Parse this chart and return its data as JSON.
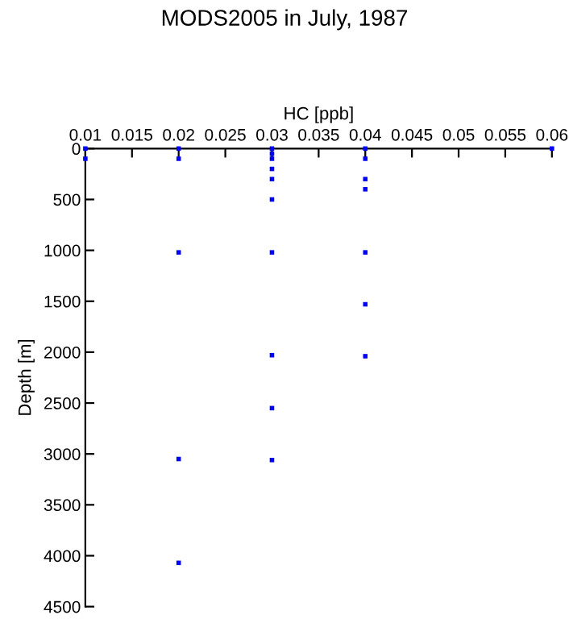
{
  "chart_data": {
    "type": "scatter",
    "title": "MODS2005 in July, 1987",
    "xlabel": "HC [ppb]",
    "ylabel": "Depth [m]",
    "x": [
      0.01,
      0.01,
      0.02,
      0.02,
      0.02,
      0.02,
      0.02,
      0.03,
      0.03,
      0.03,
      0.03,
      0.03,
      0.03,
      0.03,
      0.03,
      0.03,
      0.03,
      0.04,
      0.04,
      0.04,
      0.04,
      0.04,
      0.04,
      0.04,
      0.06
    ],
    "values": [
      0,
      100,
      0,
      100,
      1020,
      3050,
      4070,
      0,
      50,
      100,
      200,
      300,
      500,
      1020,
      2030,
      2550,
      3060,
      0,
      100,
      300,
      400,
      1020,
      1530,
      2040,
      0
    ],
    "color": "#0000ff",
    "marker": "square",
    "grid": false,
    "xlim": [
      0.01,
      0.06
    ],
    "xticks": [
      0.01,
      0.015,
      0.02,
      0.025,
      0.03,
      0.035,
      0.04,
      0.045,
      0.05,
      0.055,
      0.06
    ],
    "ylim": [
      4500,
      0
    ],
    "yticks": [
      0,
      500,
      1000,
      1500,
      2000,
      2500,
      3000,
      3500,
      4000,
      4500
    ]
  }
}
